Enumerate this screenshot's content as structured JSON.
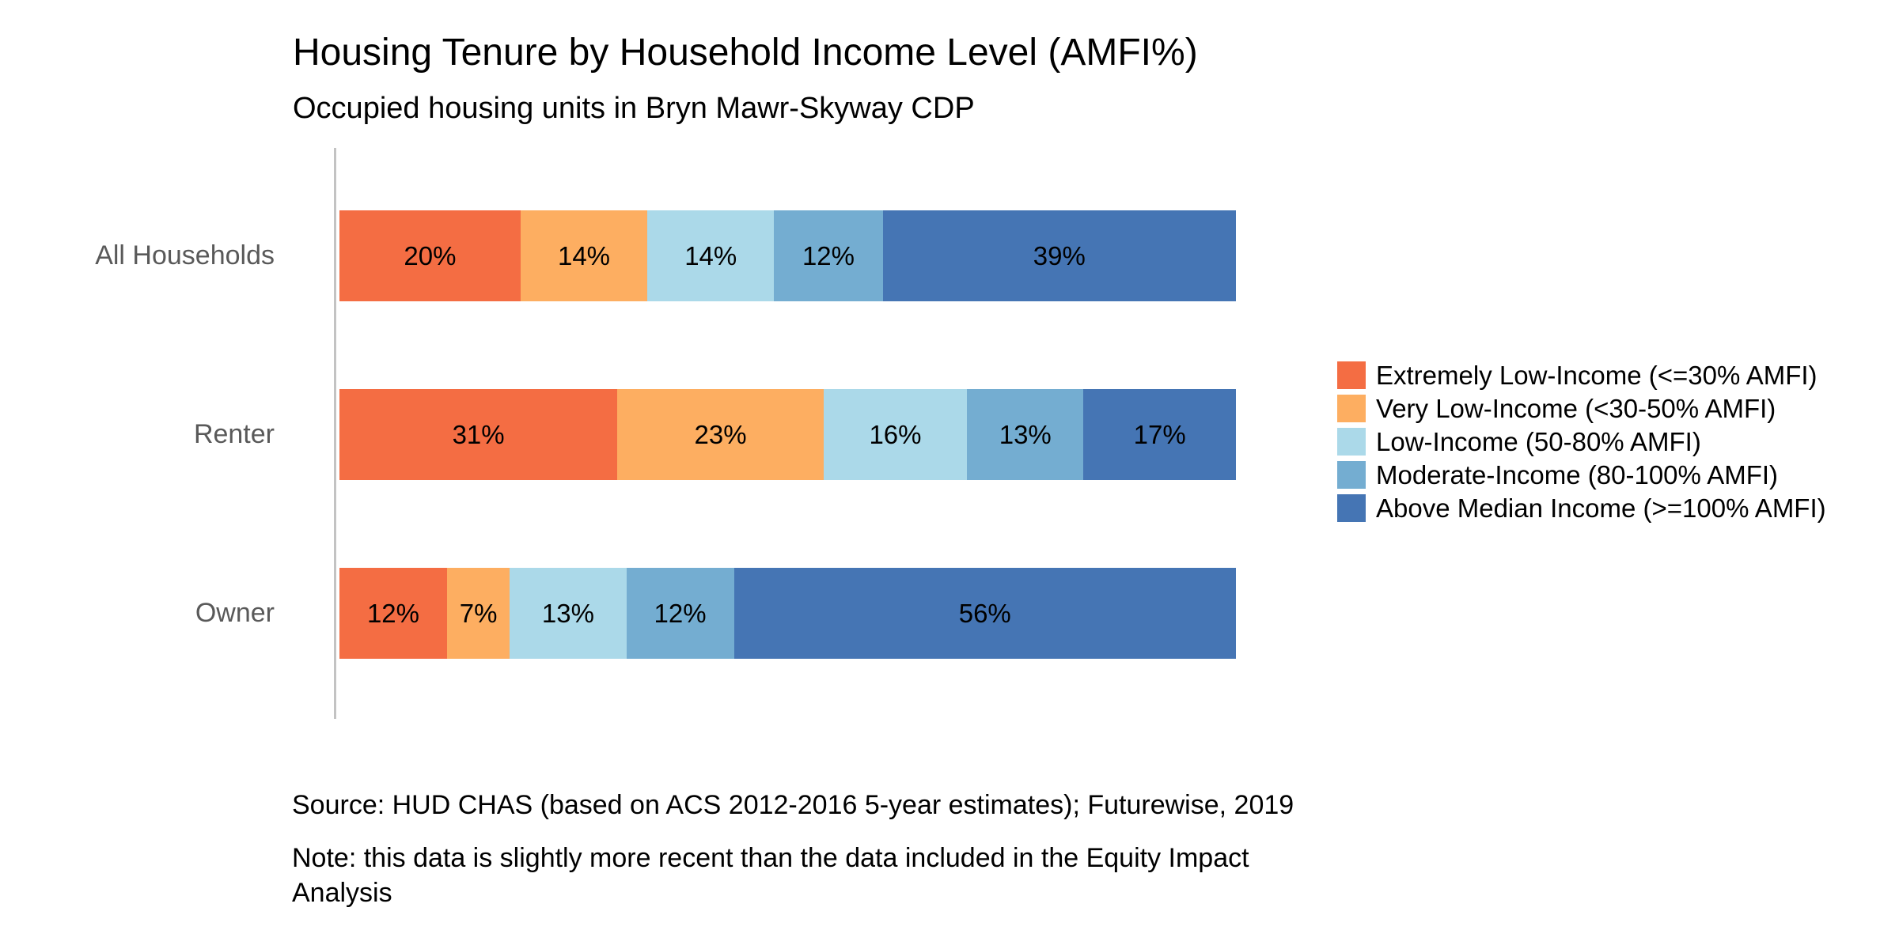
{
  "header": {
    "title": "Housing Tenure by Household Income Level (AMFI%)",
    "subtitle": "Occupied housing units in Bryn Mawr-Skyway CDP"
  },
  "chart_data": {
    "type": "bar",
    "orientation": "horizontal",
    "stacked": true,
    "unit": "%",
    "title": "Housing Tenure by Household Income Level (AMFI%)",
    "subtitle": "Occupied housing units in Bryn Mawr-Skyway CDP",
    "categories": [
      "All Households",
      "Renter",
      "Owner"
    ],
    "series": [
      {
        "name": "Extremely Low-Income (<=30% AMFI)",
        "color": "#F46D43",
        "values": [
          20,
          31,
          12
        ]
      },
      {
        "name": "Very Low-Income (<30-50% AMFI)",
        "color": "#FDAE61",
        "values": [
          14,
          23,
          7
        ]
      },
      {
        "name": "Low-Income (50-80% AMFI)",
        "color": "#ABD9E9",
        "values": [
          14,
          16,
          13
        ]
      },
      {
        "name": "Moderate-Income (80-100% AMFI)",
        "color": "#74ADD1",
        "values": [
          12,
          13,
          12
        ]
      },
      {
        "name": "Above Median Income (>=100% AMFI)",
        "color": "#4575B4",
        "values": [
          39,
          17,
          56
        ]
      }
    ],
    "xlim": [
      0,
      100
    ],
    "grid": false,
    "legend_position": "right",
    "data_labels": "inside-center",
    "axis_line_color": "#C3C3C3",
    "category_label_color": "#595959"
  },
  "footer": {
    "source": "Source: HUD CHAS (based on ACS 2012-2016 5-year estimates); Futurewise, 2019",
    "note_lines": [
      "Note: this data is slightly more recent than the data included in the Equity Impact",
      "Analysis"
    ]
  }
}
